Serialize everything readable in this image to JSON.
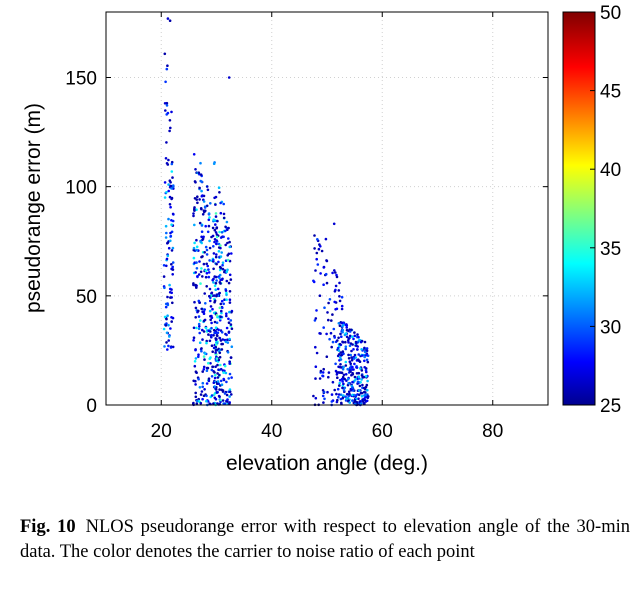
{
  "caption": {
    "label": "Fig. 10",
    "text": "NLOS pseudorange error with respect to elevation angle of the 30-min data. The color denotes the carrier to noise ratio of each point"
  },
  "chart_data": {
    "type": "scatter",
    "title": "",
    "xlabel": "elevation angle (deg.)",
    "ylabel": "pseudorange error (m)",
    "xlim": [
      10,
      90
    ],
    "ylim": [
      0,
      180
    ],
    "xticks": [
      20,
      40,
      60,
      80
    ],
    "yticks": [
      0,
      50,
      100,
      150
    ],
    "grid": true,
    "colorbar": {
      "label": "",
      "range": [
        25,
        50
      ],
      "ticks": [
        25,
        30,
        35,
        40,
        45,
        50
      ],
      "colormap": "jet"
    },
    "clusters": [
      {
        "x_range": [
          20.5,
          22.2
        ],
        "y_range": [
          25,
          177
        ],
        "c_range": [
          26,
          34
        ],
        "approx_points": 120
      },
      {
        "x_range": [
          25.8,
          31.0
        ],
        "y_range": [
          0,
          122
        ],
        "c_range": [
          26,
          36
        ],
        "approx_points": 380
      },
      {
        "x_range": [
          29.5,
          32.8
        ],
        "y_range": [
          0,
          115
        ],
        "c_range": [
          26,
          37
        ],
        "approx_points": 200
      },
      {
        "x_range": [
          47.5,
          53.0
        ],
        "y_range": [
          0,
          83
        ],
        "c_range": [
          26,
          30
        ],
        "approx_points": 120
      },
      {
        "x_range": [
          52.0,
          57.5
        ],
        "y_range": [
          0,
          42
        ],
        "c_range": [
          26,
          34
        ],
        "approx_points": 300
      }
    ],
    "outliers": [
      {
        "x": 21.2,
        "y": 177,
        "c": 27
      },
      {
        "x": 21.6,
        "y": 176,
        "c": 26
      },
      {
        "x": 32.3,
        "y": 150,
        "c": 27
      },
      {
        "x": 51.3,
        "y": 83,
        "c": 27
      },
      {
        "x": 49.8,
        "y": 76,
        "c": 27
      }
    ]
  }
}
